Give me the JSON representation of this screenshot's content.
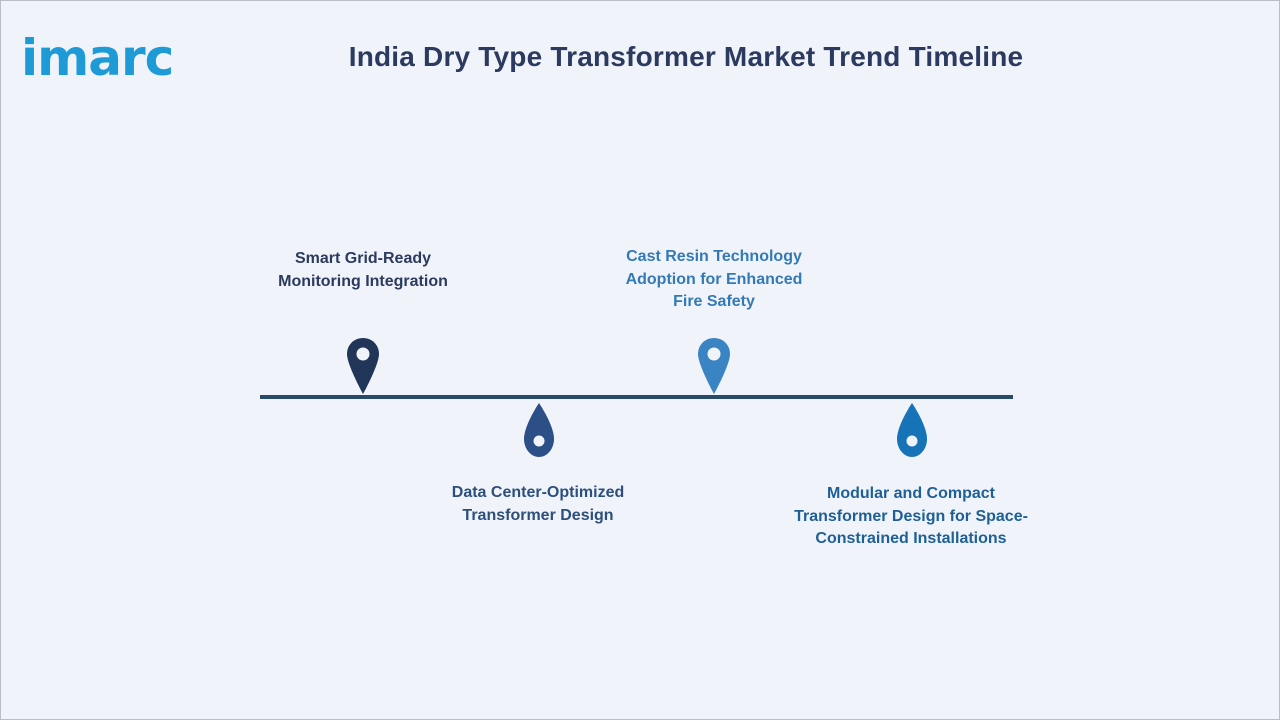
{
  "brand": {
    "logo_text": "imarc",
    "logo_color": "#1e9ad6"
  },
  "title": "India Dry Type Transformer Market Trend Timeline",
  "timeline": {
    "line_color": "#284a69",
    "items": [
      {
        "lines": [
          "Smart Grid-Ready",
          "Monitoring Integration"
        ],
        "position": "above",
        "text_color": "#2b3a5e",
        "pin_color": "#213558",
        "icon": "map-pin-icon"
      },
      {
        "lines": [
          "Data Center-Optimized",
          "Transformer Design"
        ],
        "position": "below",
        "text_color": "#2c4f7c",
        "pin_color": "#2b4f86",
        "icon": "drop-pin-icon"
      },
      {
        "lines": [
          "Cast Resin Technology",
          "Adoption for Enhanced",
          "Fire Safety"
        ],
        "position": "above",
        "text_color": "#3479b7",
        "pin_color": "#3a84c4",
        "icon": "map-pin-icon"
      },
      {
        "lines": [
          "Modular and Compact",
          "Transformer Design for Space-",
          "Constrained Installations"
        ],
        "position": "below",
        "text_color": "#1e5f96",
        "pin_color": "#1673b8",
        "icon": "drop-pin-icon"
      }
    ]
  }
}
